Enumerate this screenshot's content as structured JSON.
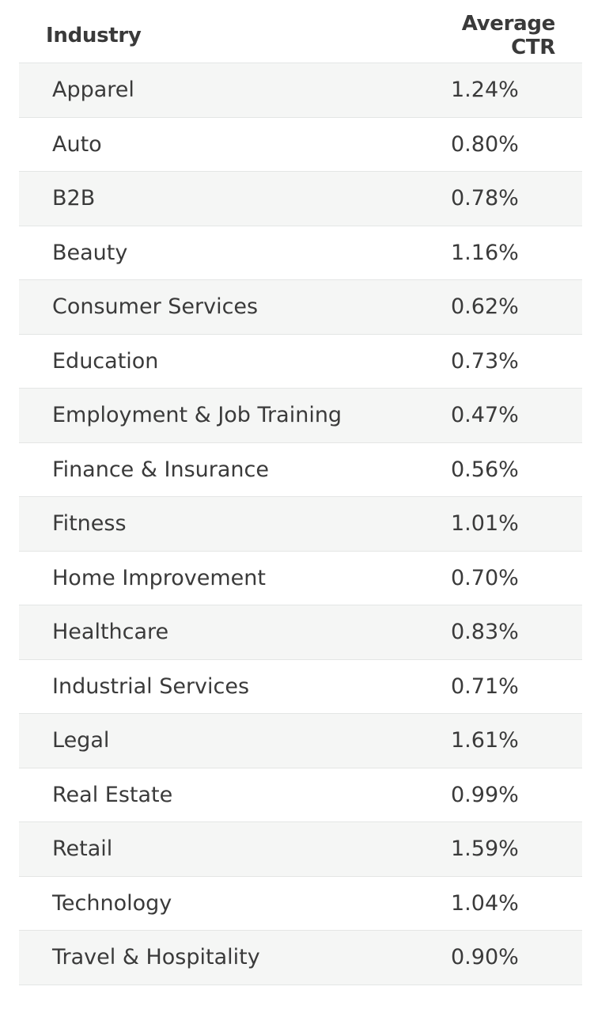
{
  "table": {
    "headers": {
      "industry": "Industry",
      "ctr": "Average CTR"
    },
    "rows": [
      {
        "industry": "Apparel",
        "ctr": "1.24%"
      },
      {
        "industry": "Auto",
        "ctr": "0.80%"
      },
      {
        "industry": "B2B",
        "ctr": "0.78%"
      },
      {
        "industry": "Beauty",
        "ctr": "1.16%"
      },
      {
        "industry": "Consumer Services",
        "ctr": "0.62%"
      },
      {
        "industry": "Education",
        "ctr": "0.73%"
      },
      {
        "industry": "Employment & Job Training",
        "ctr": "0.47%"
      },
      {
        "industry": "Finance & Insurance",
        "ctr": "0.56%"
      },
      {
        "industry": "Fitness",
        "ctr": "1.01%"
      },
      {
        "industry": "Home Improvement",
        "ctr": "0.70%"
      },
      {
        "industry": "Healthcare",
        "ctr": "0.83%"
      },
      {
        "industry": "Industrial Services",
        "ctr": "0.71%"
      },
      {
        "industry": "Legal",
        "ctr": "1.61%"
      },
      {
        "industry": "Real Estate",
        "ctr": "0.99%"
      },
      {
        "industry": "Retail",
        "ctr": "1.59%"
      },
      {
        "industry": "Technology",
        "ctr": "1.04%"
      },
      {
        "industry": "Travel & Hospitality",
        "ctr": "0.90%"
      }
    ]
  }
}
